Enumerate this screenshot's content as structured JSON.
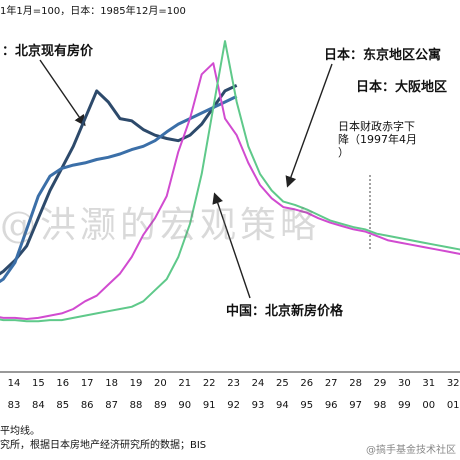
{
  "header": {
    "note": "1年1月=100，日本：1985年12月=100"
  },
  "labels": {
    "beijing_existing": "：北京现有房价",
    "tokyo": "日本：东京地区公寓",
    "osaka": "日本：大阪地区",
    "fiscal_note_line1": "日本财政赤字下",
    "fiscal_note_line2": "降（1997年4月",
    "fiscal_note_line3": "）",
    "beijing_new": "中国：北京新房价格"
  },
  "x_top": [
    "14",
    "15",
    "16",
    "17",
    "18",
    "19",
    "20",
    "21",
    "22",
    "23",
    "24",
    "25",
    "26",
    "27",
    "28",
    "29",
    "30",
    "31",
    "32"
  ],
  "x_bottom": [
    "83",
    "84",
    "85",
    "86",
    "87",
    "88",
    "89",
    "90",
    "91",
    "92",
    "93",
    "94",
    "95",
    "96",
    "97",
    "98",
    "99",
    "00",
    "01"
  ],
  "footer": {
    "line1": "平均线。",
    "line2": "究所，根据日本房地产经济研究所的数据；BIS"
  },
  "watermark": "@洪灏的宏观策略",
  "credit": "@搞手基金技术社区",
  "colors": {
    "beijing_existing": "#2d4a6b",
    "beijing_new": "#3b6fa8",
    "tokyo": "#d14bd0",
    "osaka": "#5fc98a"
  },
  "chart_data": {
    "type": "line",
    "x": [
      12,
      12.5,
      13,
      13.5,
      14,
      14.5,
      15,
      15.5,
      16,
      16.5,
      17,
      17.5,
      18,
      18.5,
      19,
      19.5,
      20,
      20.5,
      21,
      21.5,
      22,
      22.5,
      23,
      23.5,
      24,
      24.5,
      25,
      25.5,
      26,
      26.5,
      27,
      27.5,
      28,
      28.5,
      29,
      29.5,
      30,
      30.5,
      31,
      31.5,
      32,
      32.5,
      33
    ],
    "series": [
      {
        "name": "北京现有房价",
        "key": "beijing_existing",
        "values": [
          50,
          55,
          62,
          72,
          85,
          110,
          135,
          155,
          175,
          200,
          225,
          215,
          200,
          198,
          190,
          185,
          182,
          180,
          185,
          195,
          210,
          225,
          230,
          null,
          null,
          null,
          null,
          null,
          null,
          null,
          null,
          null,
          null,
          null,
          null,
          null,
          null,
          null,
          null,
          null,
          null,
          null,
          null
        ]
      },
      {
        "name": "北京新房价格",
        "key": "beijing_new",
        "values": [
          45,
          48,
          55,
          70,
          100,
          130,
          148,
          155,
          158,
          160,
          163,
          165,
          168,
          172,
          175,
          180,
          188,
          195,
          200,
          205,
          210,
          215,
          220,
          null,
          null,
          null,
          null,
          null,
          null,
          null,
          null,
          null,
          null,
          null,
          null,
          null,
          null,
          null,
          null,
          null,
          null,
          null,
          null
        ]
      },
      {
        "name": "东京地区公寓",
        "key": "tokyo",
        "values": [
          25,
          22,
          20,
          20,
          19,
          20,
          22,
          24,
          28,
          35,
          40,
          50,
          60,
          75,
          95,
          110,
          130,
          170,
          200,
          240,
          250,
          200,
          185,
          160,
          140,
          128,
          120,
          118,
          115,
          110,
          106,
          103,
          100,
          98,
          94,
          90,
          88,
          86,
          84,
          82,
          80,
          78,
          76
        ]
      },
      {
        "name": "大阪地区",
        "key": "osaka",
        "values": [
          22,
          20,
          18,
          18,
          17,
          17,
          18,
          18,
          20,
          22,
          24,
          26,
          28,
          30,
          35,
          45,
          55,
          75,
          105,
          150,
          210,
          270,
          215,
          175,
          150,
          135,
          125,
          122,
          118,
          113,
          108,
          105,
          102,
          100,
          96,
          94,
          92,
          90,
          88,
          86,
          84,
          82,
          80
        ]
      }
    ],
    "ylim": [
      0,
      280
    ],
    "xlim": [
      12,
      33
    ]
  }
}
